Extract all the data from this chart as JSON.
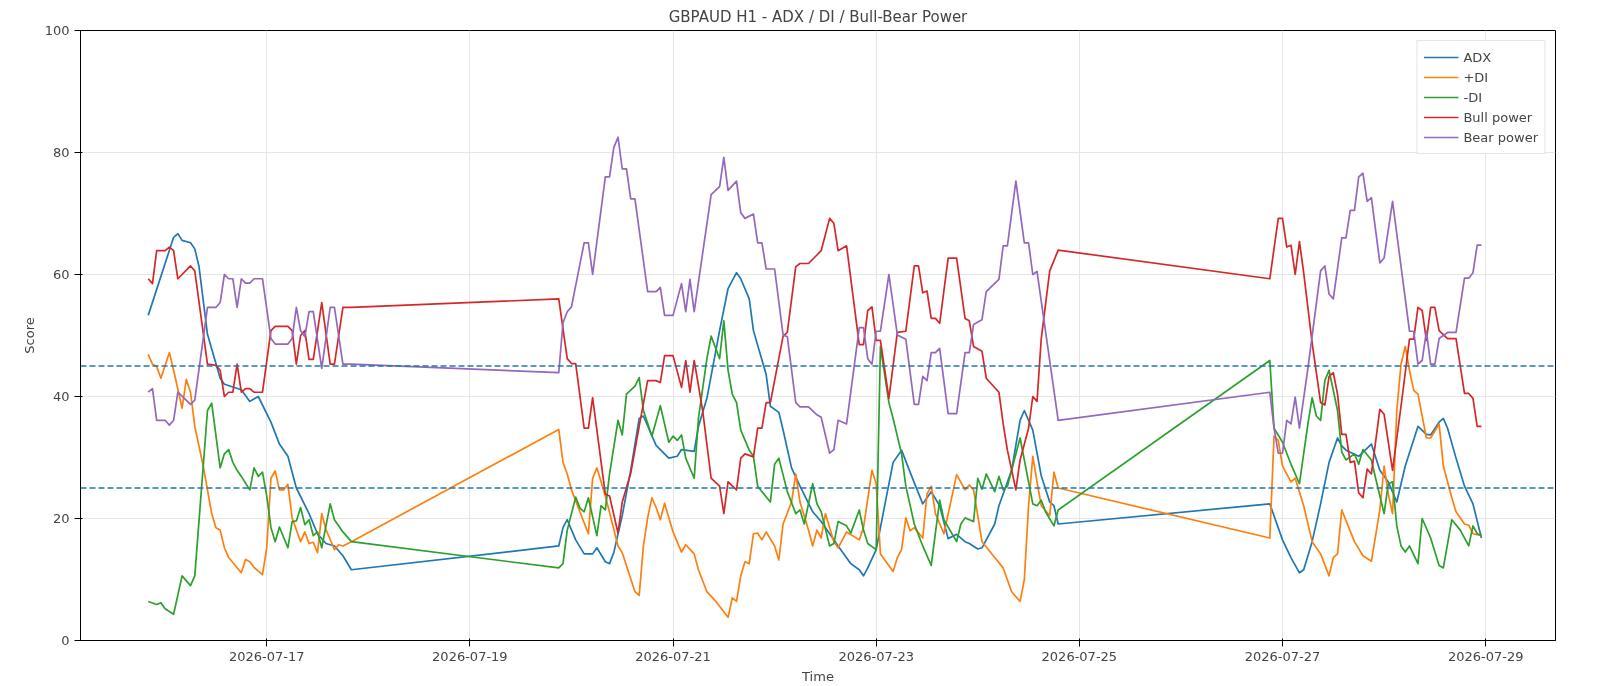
{
  "chart_data": {
    "type": "line",
    "title": "GBPAUD H1 - ADX / DI / Bull-Bear Power",
    "xlabel": "Time",
    "ylabel": "Score",
    "xlim": [
      "2026-07-15T04:00",
      "2026-07-29T16:30"
    ],
    "xticks": [
      "2026-07-17",
      "2026-07-19",
      "2026-07-21",
      "2026-07-23",
      "2026-07-25",
      "2026-07-27",
      "2026-07-29"
    ],
    "ylim": [
      0,
      100
    ],
    "yticks": [
      0,
      20,
      40,
      60,
      80,
      100
    ],
    "grid": true,
    "legend": "top right",
    "line_style": "solid",
    "ref_lines": [
      {
        "axis": "y",
        "value": 45,
        "color": "#1f77b4",
        "line_style": "dashed"
      },
      {
        "axis": "y",
        "value": 25,
        "color": "#1f77b4",
        "line_style": "dashed"
      }
    ],
    "series": [
      {
        "name": "ADX",
        "color": "#1f77b4",
        "x": [
          "2026-07-15T20:00",
          "2026-07-16T02:00",
          "2026-07-16T03:00",
          "2026-07-16T04:00",
          "2026-07-16T06:00",
          "2026-07-16T07:00",
          "2026-07-16T08:00",
          "2026-07-16T10:00",
          "2026-07-16T13:00",
          "2026-07-16T14:00",
          "2026-07-16T18:00",
          "2026-07-16T20:00",
          "2026-07-16T22:00",
          "2026-07-17T01:00",
          "2026-07-17T03:00",
          "2026-07-17T05:00",
          "2026-07-17T07:00",
          "2026-07-17T10:00",
          "2026-07-17T12:00",
          "2026-07-17T14:00",
          "2026-07-17T16:00",
          "2026-07-17T18:00",
          "2026-07-17T20:00",
          "2026-07-19T21:00",
          "2026-07-19T22:00",
          "2026-07-19T23:00",
          "2026-07-20T01:00",
          "2026-07-20T03:00",
          "2026-07-20T05:00",
          "2026-07-20T06:00",
          "2026-07-20T08:00",
          "2026-07-20T09:00",
          "2026-07-20T10:00",
          "2026-07-20T12:00",
          "2026-07-20T14:00",
          "2026-07-20T16:00",
          "2026-07-20T17:00",
          "2026-07-20T20:00",
          "2026-07-20T23:00",
          "2026-07-21T01:00",
          "2026-07-21T02:00",
          "2026-07-21T05:00",
          "2026-07-21T06:00",
          "2026-07-21T08:00",
          "2026-07-21T11:00",
          "2026-07-21T13:00",
          "2026-07-21T15:00",
          "2026-07-21T16:00",
          "2026-07-21T18:00",
          "2026-07-21T19:00",
          "2026-07-21T22:00",
          "2026-07-21T23:00",
          "2026-07-22T01:00",
          "2026-07-22T02:00",
          "2026-07-22T04:00",
          "2026-07-22T06:00",
          "2026-07-22T09:00",
          "2026-07-22T11:00",
          "2026-07-22T13:00",
          "2026-07-22T15:00",
          "2026-07-22T18:00",
          "2026-07-22T20:00",
          "2026-07-22T21:00",
          "2026-07-22T22:00",
          "2026-07-23T00:00",
          "2026-07-23T02:00",
          "2026-07-23T04:00",
          "2026-07-23T06:00",
          "2026-07-23T08:00",
          "2026-07-23T11:00",
          "2026-07-23T13:00",
          "2026-07-23T15:00",
          "2026-07-23T17:00",
          "2026-07-23T19:00",
          "2026-07-23T21:00",
          "2026-07-23T22:00",
          "2026-07-24T00:00",
          "2026-07-24T01:00",
          "2026-07-24T04:00",
          "2026-07-24T05:00",
          "2026-07-24T08:00",
          "2026-07-24T10:00",
          "2026-07-24T11:00",
          "2026-07-24T13:00",
          "2026-07-24T15:00",
          "2026-07-24T17:00",
          "2026-07-24T18:00",
          "2026-07-24T19:00",
          "2026-07-26T21:00",
          "2026-07-27T00:00",
          "2026-07-27T02:00",
          "2026-07-27T04:00",
          "2026-07-27T05:00",
          "2026-07-27T07:00",
          "2026-07-27T09:00",
          "2026-07-27T11:00",
          "2026-07-27T13:00",
          "2026-07-27T14:00",
          "2026-07-27T15:00",
          "2026-07-27T18:00",
          "2026-07-27T21:00",
          "2026-07-27T23:00",
          "2026-07-28T01:00",
          "2026-07-28T03:00",
          "2026-07-28T05:00",
          "2026-07-28T08:00",
          "2026-07-28T10:00",
          "2026-07-28T11:00",
          "2026-07-28T13:00",
          "2026-07-28T14:00",
          "2026-07-28T15:00",
          "2026-07-28T17:00",
          "2026-07-28T19:00",
          "2026-07-28T21:00",
          "2026-07-28T23:00"
        ],
        "values": [
          53.3,
          66.1,
          66.7,
          65.6,
          65.2,
          64.2,
          61.3,
          50.2,
          43,
          42,
          41.1,
          39.2,
          40,
          35.8,
          32.2,
          30.2,
          25,
          20.8,
          17.5,
          15.9,
          15.5,
          13.9,
          11.6,
          15.5,
          18.5,
          19.8,
          16.5,
          14.2,
          14.2,
          15.2,
          12.9,
          12.6,
          14.4,
          20.5,
          27.9,
          36.4,
          36.8,
          32,
          29.9,
          30.2,
          31.3,
          31,
          35.1,
          39.7,
          50.8,
          57.7,
          60.3,
          59.3,
          56,
          50.8,
          43.6,
          38.4,
          37.4,
          34.5,
          28.3,
          25.3,
          21.1,
          19.5,
          17.5,
          15.5,
          12.6,
          11.6,
          10.6,
          11.9,
          14.9,
          22.1,
          29.2,
          31.2,
          27.6,
          22.4,
          24.4,
          22.1,
          16.7,
          17.4,
          16.2,
          15.9,
          15,
          15.2,
          19.1,
          22.1,
          27.9,
          36.1,
          37.7,
          34.5,
          27,
          22.7,
          22.1,
          19.1,
          22.4,
          16.5,
          13.6,
          11.1,
          11.6,
          16.2,
          22.4,
          29.2,
          33.2,
          31.9,
          31.2,
          30.2,
          32.2,
          27.9,
          26,
          22.7,
          28.6,
          35.1,
          33.8,
          33.7,
          35.8,
          36.4,
          34.8,
          29.9,
          25.3,
          22.4,
          16.8
        ]
      },
      {
        "name": "+DI",
        "color": "#ff7f0e",
        "x": [
          "2026-07-15T20:00",
          "2026-07-15T21:00",
          "2026-07-15T22:00",
          "2026-07-15T23:00",
          "2026-07-16T01:00",
          "2026-07-16T02:00",
          "2026-07-16T04:00",
          "2026-07-16T05:00",
          "2026-07-16T06:00",
          "2026-07-16T07:00",
          "2026-07-16T09:00",
          "2026-07-16T11:00",
          "2026-07-16T12:00",
          "2026-07-16T13:00",
          "2026-07-16T14:00",
          "2026-07-16T15:00",
          "2026-07-16T18:00",
          "2026-07-16T19:00",
          "2026-07-16T20:00",
          "2026-07-16T21:00",
          "2026-07-16T23:00",
          "2026-07-17T00:00",
          "2026-07-17T01:00",
          "2026-07-17T02:00",
          "2026-07-17T03:00",
          "2026-07-17T04:00",
          "2026-07-17T05:00",
          "2026-07-17T06:00",
          "2026-07-17T08:00",
          "2026-07-17T09:00",
          "2026-07-17T10:00",
          "2026-07-17T11:00",
          "2026-07-17T12:00",
          "2026-07-17T13:00",
          "2026-07-17T14:00",
          "2026-07-17T16:00",
          "2026-07-17T17:00",
          "2026-07-17T18:00",
          "2026-07-17T20:00",
          "2026-07-19T21:00",
          "2026-07-19T22:00",
          "2026-07-19T23:00",
          "2026-07-20T00:00",
          "2026-07-20T04:00",
          "2026-07-20T05:00",
          "2026-07-20T06:00",
          "2026-07-20T08:00",
          "2026-07-20T11:00",
          "2026-07-20T12:00",
          "2026-07-20T15:00",
          "2026-07-20T16:00",
          "2026-07-20T17:00",
          "2026-07-20T18:00",
          "2026-07-20T19:00",
          "2026-07-20T20:00",
          "2026-07-20T21:00",
          "2026-07-20T22:00",
          "2026-07-21T00:00",
          "2026-07-21T02:00",
          "2026-07-21T03:00",
          "2026-07-21T05:00",
          "2026-07-21T06:00",
          "2026-07-21T08:00",
          "2026-07-21T10:00",
          "2026-07-21T13:00",
          "2026-07-21T14:00",
          "2026-07-21T15:00",
          "2026-07-21T16:00",
          "2026-07-21T17:00",
          "2026-07-21T18:00",
          "2026-07-21T19:00",
          "2026-07-21T20:00",
          "2026-07-21T21:00",
          "2026-07-21T22:00",
          "2026-07-22T00:00",
          "2026-07-22T01:00",
          "2026-07-22T02:00",
          "2026-07-22T04:00",
          "2026-07-22T05:00",
          "2026-07-22T06:00",
          "2026-07-22T08:00",
          "2026-07-22T09:00",
          "2026-07-22T10:00",
          "2026-07-22T11:00",
          "2026-07-22T12:00",
          "2026-07-22T14:00",
          "2026-07-22T15:00",
          "2026-07-22T17:00",
          "2026-07-22T20:00",
          "2026-07-22T21:00",
          "2026-07-22T23:00",
          "2026-07-23T00:00",
          "2026-07-23T01:00",
          "2026-07-23T04:00",
          "2026-07-23T05:00",
          "2026-07-23T06:00",
          "2026-07-23T07:00",
          "2026-07-23T08:00",
          "2026-07-23T09:00",
          "2026-07-23T11:00",
          "2026-07-23T12:00",
          "2026-07-23T13:00",
          "2026-07-23T14:00",
          "2026-07-23T16:00",
          "2026-07-23T19:00",
          "2026-07-23T21:00",
          "2026-07-23T22:00",
          "2026-07-23T23:00",
          "2026-07-24T01:00",
          "2026-07-24T04:00",
          "2026-07-24T06:00",
          "2026-07-24T08:00",
          "2026-07-24T10:00",
          "2026-07-24T11:00",
          "2026-07-24T12:00",
          "2026-07-24T13:00",
          "2026-07-24T14:00",
          "2026-07-24T15:00",
          "2026-07-24T17:00",
          "2026-07-24T18:00",
          "2026-07-24T19:00",
          "2026-07-26T21:00",
          "2026-07-26T22:00",
          "2026-07-26T23:00",
          "2026-07-27T00:00",
          "2026-07-27T02:00",
          "2026-07-27T03:00",
          "2026-07-27T05:00",
          "2026-07-27T07:00",
          "2026-07-27T09:00",
          "2026-07-27T11:00",
          "2026-07-27T12:00",
          "2026-07-27T13:00",
          "2026-07-27T14:00",
          "2026-07-27T17:00",
          "2026-07-27T19:00",
          "2026-07-27T21:00",
          "2026-07-27T23:00",
          "2026-07-28T00:00",
          "2026-07-28T01:00",
          "2026-07-28T02:00",
          "2026-07-28T03:00",
          "2026-07-28T04:00",
          "2026-07-28T05:00",
          "2026-07-28T06:00",
          "2026-07-28T07:00",
          "2026-07-28T08:00",
          "2026-07-28T10:00",
          "2026-07-28T11:00",
          "2026-07-28T13:00",
          "2026-07-28T14:00",
          "2026-07-28T16:00",
          "2026-07-28T17:00",
          "2026-07-28T19:00",
          "2026-07-28T20:00",
          "2026-07-28T21:00",
          "2026-07-28T23:00"
        ],
        "values": [
          46.9,
          45.3,
          44.9,
          43,
          47.2,
          44.3,
          38.1,
          42.8,
          40.7,
          35.1,
          28.6,
          20.8,
          18.5,
          18.1,
          15.2,
          13.6,
          11.1,
          13.3,
          12.9,
          12,
          10.8,
          15.2,
          26.6,
          27.8,
          24.7,
          24.7,
          25.6,
          20.1,
          16.2,
          17.8,
          15.9,
          16.1,
          14.4,
          20.8,
          18.2,
          14.9,
          15.7,
          15.5,
          16.2,
          34.6,
          29.2,
          27.3,
          24.7,
          17.5,
          26.6,
          28.3,
          23.7,
          15.5,
          14.4,
          8,
          7.4,
          15.5,
          20.1,
          23.4,
          21.8,
          19.8,
          22.5,
          17.8,
          14.5,
          15.7,
          14.2,
          11.6,
          8,
          6.5,
          3.8,
          7,
          6.4,
          10.6,
          12.9,
          12.6,
          17.5,
          17.6,
          16.5,
          17.8,
          15.5,
          13.2,
          19.1,
          22.7,
          27.3,
          22.7,
          18.1,
          15.5,
          18.1,
          16.8,
          20.8,
          16.2,
          15.2,
          17.8,
          16.5,
          18.5,
          27.9,
          25.7,
          14.2,
          11.3,
          13.6,
          14.9,
          20.1,
          18,
          18.5,
          16.8,
          24,
          25.3,
          20.8,
          17.5,
          27.2,
          24.7,
          25.5,
          24.7,
          16.2,
          13.6,
          11.9,
          8,
          6.4,
          10,
          22.1,
          30.2,
          26,
          22.1,
          20.5,
          27.6,
          25,
          16.8,
          33.5,
          32.8,
          28.6,
          26,
          26.6,
          22.1,
          16.2,
          14.2,
          10.6,
          13.6,
          14.2,
          21.4,
          16.2,
          13.9,
          13,
          21.4,
          28.6,
          24,
          20.8,
          37.7,
          45.3,
          48.2,
          44.3,
          41,
          40.4,
          33.2,
          33.2,
          35.5,
          28.6,
          23.4,
          21.1,
          19.1,
          18.9,
          17.5,
          17.2
        ]
      },
      {
        "name": "-DI",
        "color": "#2ca02c",
        "x": [
          "2026-07-15T20:00",
          "2026-07-15T22:00",
          "2026-07-15T23:00",
          "2026-07-16T00:00",
          "2026-07-16T02:00",
          "2026-07-16T04:00",
          "2026-07-16T06:00",
          "2026-07-16T07:00",
          "2026-07-16T09:00",
          "2026-07-16T10:00",
          "2026-07-16T11:00",
          "2026-07-16T13:00",
          "2026-07-16T14:00",
          "2026-07-16T15:00",
          "2026-07-16T16:00",
          "2026-07-16T17:00",
          "2026-07-16T18:00",
          "2026-07-16T20:00",
          "2026-07-16T21:00",
          "2026-07-16T22:00",
          "2026-07-16T23:00",
          "2026-07-17T00:00",
          "2026-07-17T01:00",
          "2026-07-17T02:00",
          "2026-07-17T03:00",
          "2026-07-17T05:00",
          "2026-07-17T06:00",
          "2026-07-17T07:00",
          "2026-07-17T08:00",
          "2026-07-17T09:00",
          "2026-07-17T10:00",
          "2026-07-17T11:00",
          "2026-07-17T12:00",
          "2026-07-17T13:00",
          "2026-07-17T15:00",
          "2026-07-17T16:00",
          "2026-07-17T18:00",
          "2026-07-17T20:00",
          "2026-07-19T21:00",
          "2026-07-19T22:00",
          "2026-07-19T23:00",
          "2026-07-20T01:00",
          "2026-07-20T02:00",
          "2026-07-20T03:00",
          "2026-07-20T04:00",
          "2026-07-20T06:00",
          "2026-07-20T07:00",
          "2026-07-20T08:00",
          "2026-07-20T09:00",
          "2026-07-20T11:00",
          "2026-07-20T12:00",
          "2026-07-20T13:00",
          "2026-07-20T15:00",
          "2026-07-20T16:00",
          "2026-07-20T17:00",
          "2026-07-20T19:00",
          "2026-07-20T21:00",
          "2026-07-20T23:00",
          "2026-07-21T00:00",
          "2026-07-21T01:00",
          "2026-07-21T02:00",
          "2026-07-21T03:00",
          "2026-07-21T05:00",
          "2026-07-21T06:00",
          "2026-07-21T08:00",
          "2026-07-21T09:00",
          "2026-07-21T11:00",
          "2026-07-21T12:00",
          "2026-07-21T13:00",
          "2026-07-21T14:00",
          "2026-07-21T15:00",
          "2026-07-21T16:00",
          "2026-07-21T18:00",
          "2026-07-21T19:00",
          "2026-07-21T20:00",
          "2026-07-21T21:00",
          "2026-07-21T23:00",
          "2026-07-22T00:00",
          "2026-07-22T01:00",
          "2026-07-22T03:00",
          "2026-07-22T05:00",
          "2026-07-22T06:00",
          "2026-07-22T07:00",
          "2026-07-22T09:00",
          "2026-07-22T10:00",
          "2026-07-22T11:00",
          "2026-07-22T13:00",
          "2026-07-22T14:00",
          "2026-07-22T15:00",
          "2026-07-22T17:00",
          "2026-07-22T18:00",
          "2026-07-22T20:00",
          "2026-07-22T21:00",
          "2026-07-22T22:00",
          "2026-07-23T00:00",
          "2026-07-23T01:00",
          "2026-07-23T03:00",
          "2026-07-23T04:00",
          "2026-07-23T06:00",
          "2026-07-23T07:00",
          "2026-07-23T09:00",
          "2026-07-23T11:00",
          "2026-07-23T13:00",
          "2026-07-23T15:00",
          "2026-07-23T16:00",
          "2026-07-23T19:00",
          "2026-07-23T20:00",
          "2026-07-23T21:00",
          "2026-07-23T23:00",
          "2026-07-24T00:00",
          "2026-07-24T01:00",
          "2026-07-24T02:00",
          "2026-07-24T04:00",
          "2026-07-24T05:00",
          "2026-07-24T06:00",
          "2026-07-24T07:00",
          "2026-07-24T10:00",
          "2026-07-24T13:00",
          "2026-07-24T14:00",
          "2026-07-24T15:00",
          "2026-07-24T16:00",
          "2026-07-24T18:00",
          "2026-07-24T19:00",
          "2026-07-26T21:00",
          "2026-07-26T22:00",
          "2026-07-27T00:00",
          "2026-07-27T02:00",
          "2026-07-27T04:00",
          "2026-07-27T06:00",
          "2026-07-27T07:00",
          "2026-07-27T08:00",
          "2026-07-27T09:00",
          "2026-07-27T10:00",
          "2026-07-27T11:00",
          "2026-07-27T13:00",
          "2026-07-27T14:00",
          "2026-07-27T15:00",
          "2026-07-27T17:00",
          "2026-07-27T18:00",
          "2026-07-27T19:00",
          "2026-07-27T21:00",
          "2026-07-27T22:00",
          "2026-07-28T00:00",
          "2026-07-28T01:00",
          "2026-07-28T02:00",
          "2026-07-28T03:00",
          "2026-07-28T04:00",
          "2026-07-28T05:00",
          "2026-07-28T06:00",
          "2026-07-28T08:00",
          "2026-07-28T09:00",
          "2026-07-28T11:00",
          "2026-07-28T13:00",
          "2026-07-28T14:00",
          "2026-07-28T16:00",
          "2026-07-28T18:00",
          "2026-07-28T20:00",
          "2026-07-28T21:00",
          "2026-07-28T22:00",
          "2026-07-28T23:00"
        ],
        "values": [
          6.4,
          5.9,
          6.2,
          5.2,
          4.3,
          10.6,
          9,
          10.6,
          28.6,
          37.7,
          38.9,
          28.3,
          30.6,
          31.3,
          29.2,
          27.9,
          26.9,
          24.7,
          28.3,
          26.9,
          27.6,
          23.7,
          18.5,
          16.2,
          18.6,
          15.2,
          19.5,
          19.6,
          21.8,
          19,
          19.8,
          17.2,
          17.8,
          15.2,
          22.4,
          19.8,
          17.8,
          16.2,
          11.9,
          12.6,
          18.1,
          23.5,
          21.7,
          21.1,
          23.4,
          17.2,
          22.1,
          21.4,
          27.3,
          36.1,
          33.7,
          40.4,
          41.7,
          43.1,
          37.7,
          33.5,
          38.5,
          32.5,
          33.5,
          32.8,
          33.7,
          29.9,
          26.6,
          36.4,
          46.2,
          49.9,
          46.2,
          52.4,
          44.3,
          40.4,
          39,
          34.5,
          31.2,
          30.2,
          25.3,
          24.4,
          22.7,
          28.9,
          29.9,
          24.4,
          20.8,
          21.4,
          19.1,
          25.7,
          22.4,
          21.1,
          15.5,
          15.9,
          19.5,
          18.8,
          17.6,
          21.4,
          18.1,
          15.9,
          14.9,
          48.2,
          39,
          36.4,
          30.6,
          25.3,
          19.1,
          15.5,
          12.3,
          23,
          19.8,
          16.2,
          19.1,
          20.1,
          19.5,
          26.6,
          24.8,
          27.3,
          24.4,
          26.9,
          24.7,
          25.3,
          33.2,
          22.4,
          22.1,
          23,
          21.1,
          18.8,
          21.4,
          45.9,
          34.8,
          32.5,
          28.9,
          25.7,
          35.5,
          39.8,
          36.8,
          36.1,
          42.6,
          44.3,
          37.7,
          30.9,
          29.6,
          30.6,
          28.9,
          31.3,
          29.6,
          26.6,
          20.8,
          25.7,
          26,
          18.8,
          15.5,
          14.5,
          15.5,
          12.6,
          20,
          16.8,
          12.3,
          11.9,
          19.8,
          18.1,
          15.5,
          18.8,
          17.5,
          17.2
        ]
      },
      {
        "name": "Bull power",
        "color": "#d62728",
        "x": [
          "2026-07-15T20:00",
          "2026-07-15T21:00",
          "2026-07-15T22:00",
          "2026-07-16T00:00",
          "2026-07-16T01:00",
          "2026-07-16T02:00",
          "2026-07-16T03:00",
          "2026-07-16T06:00",
          "2026-07-16T07:00",
          "2026-07-16T10:00",
          "2026-07-16T12:00",
          "2026-07-16T13:00",
          "2026-07-16T14:00",
          "2026-07-16T15:00",
          "2026-07-16T16:00",
          "2026-07-16T17:00",
          "2026-07-16T18:00",
          "2026-07-16T19:00",
          "2026-07-16T20:00",
          "2026-07-16T21:00",
          "2026-07-16T23:00",
          "2026-07-17T01:00",
          "2026-07-17T02:00",
          "2026-07-17T05:00",
          "2026-07-17T06:00",
          "2026-07-17T07:00",
          "2026-07-17T08:00",
          "2026-07-17T09:00",
          "2026-07-17T10:00",
          "2026-07-17T11:00",
          "2026-07-17T13:00",
          "2026-07-17T15:00",
          "2026-07-17T16:00",
          "2026-07-17T18:00",
          "2026-07-17T20:00",
          "2026-07-19T21:00",
          "2026-07-19T23:00",
          "2026-07-20T00:00",
          "2026-07-20T01:00",
          "2026-07-20T03:00",
          "2026-07-20T04:00",
          "2026-07-20T05:00",
          "2026-07-20T08:00",
          "2026-07-20T09:00",
          "2026-07-20T11:00",
          "2026-07-20T12:00",
          "2026-07-20T14:00",
          "2026-07-20T16:00",
          "2026-07-20T18:00",
          "2026-07-20T20:00",
          "2026-07-20T21:00",
          "2026-07-20T22:00",
          "2026-07-21T00:00",
          "2026-07-21T02:00",
          "2026-07-21T03:00",
          "2026-07-21T04:00",
          "2026-07-21T05:00",
          "2026-07-21T07:00",
          "2026-07-21T09:00",
          "2026-07-21T11:00",
          "2026-07-21T12:00",
          "2026-07-21T13:00",
          "2026-07-21T15:00",
          "2026-07-21T16:00",
          "2026-07-21T17:00",
          "2026-07-21T19:00",
          "2026-07-21T20:00",
          "2026-07-21T21:00",
          "2026-07-21T22:00",
          "2026-07-21T23:00",
          "2026-07-22T02:00",
          "2026-07-22T03:00",
          "2026-07-22T05:00",
          "2026-07-22T06:00",
          "2026-07-22T08:00",
          "2026-07-22T10:00",
          "2026-07-22T11:00",
          "2026-07-22T13:00",
          "2026-07-22T14:00",
          "2026-07-22T15:00",
          "2026-07-22T17:00",
          "2026-07-22T20:00",
          "2026-07-22T21:00",
          "2026-07-22T22:00",
          "2026-07-22T23:00",
          "2026-07-23T00:00",
          "2026-07-23T01:00",
          "2026-07-23T03:00",
          "2026-07-23T05:00",
          "2026-07-23T07:00",
          "2026-07-23T09:00",
          "2026-07-23T10:00",
          "2026-07-23T11:00",
          "2026-07-23T12:00",
          "2026-07-23T13:00",
          "2026-07-23T14:00",
          "2026-07-23T15:00",
          "2026-07-23T17:00",
          "2026-07-23T19:00",
          "2026-07-23T21:00",
          "2026-07-23T22:00",
          "2026-07-23T23:00",
          "2026-07-24T01:00",
          "2026-07-24T02:00",
          "2026-07-24T05:00",
          "2026-07-24T06:00",
          "2026-07-24T07:00",
          "2026-07-24T09:00",
          "2026-07-24T10:00",
          "2026-07-24T12:00",
          "2026-07-24T13:00",
          "2026-07-24T14:00",
          "2026-07-24T15:00",
          "2026-07-24T17:00",
          "2026-07-24T19:00",
          "2026-07-26T21:00",
          "2026-07-26T23:00",
          "2026-07-27T00:00",
          "2026-07-27T01:00",
          "2026-07-27T02:00",
          "2026-07-27T03:00",
          "2026-07-27T04:00",
          "2026-07-27T05:00",
          "2026-07-27T07:00",
          "2026-07-27T09:00",
          "2026-07-27T10:00",
          "2026-07-27T11:00",
          "2026-07-27T12:00",
          "2026-07-27T13:00",
          "2026-07-27T14:00",
          "2026-07-27T15:00",
          "2026-07-27T16:00",
          "2026-07-27T17:00",
          "2026-07-27T18:00",
          "2026-07-27T19:00",
          "2026-07-27T20:00",
          "2026-07-27T21:00",
          "2026-07-27T23:00",
          "2026-07-28T00:00",
          "2026-07-28T02:00",
          "2026-07-28T04:00",
          "2026-07-28T06:00",
          "2026-07-28T07:00",
          "2026-07-28T08:00",
          "2026-07-28T09:00",
          "2026-07-28T10:00",
          "2026-07-28T11:00",
          "2026-07-28T12:00",
          "2026-07-28T13:00",
          "2026-07-28T15:00",
          "2026-07-28T17:00",
          "2026-07-28T19:00",
          "2026-07-28T20:00",
          "2026-07-28T21:00",
          "2026-07-28T22:00",
          "2026-07-28T23:00"
        ],
        "values": [
          59.3,
          58.5,
          63.9,
          63.9,
          64.5,
          63.9,
          59.3,
          61.4,
          60.6,
          45.3,
          45.1,
          44.3,
          40,
          40.7,
          40.7,
          45.3,
          40.7,
          41.3,
          41.3,
          40.7,
          40.7,
          50.8,
          51.5,
          51.5,
          50.8,
          45.3,
          50,
          50.8,
          46.1,
          46.1,
          55.4,
          45.3,
          45.3,
          54.6,
          54.6,
          56,
          46.2,
          45.4,
          45.4,
          34.8,
          34.8,
          39.8,
          24,
          23.7,
          17.6,
          22.7,
          27.4,
          35.1,
          42.6,
          42.6,
          42.3,
          46.7,
          46.7,
          41.5,
          45.9,
          40.7,
          45.9,
          37.7,
          26.6,
          25.3,
          20.8,
          26,
          24.7,
          29.9,
          30.6,
          30.1,
          34.8,
          34.8,
          39,
          39,
          49.9,
          50.5,
          61.3,
          61.8,
          61.8,
          63.2,
          63.9,
          69.2,
          68.4,
          63.9,
          64.7,
          48.5,
          48.5,
          54.1,
          54.7,
          49.2,
          49.2,
          39.7,
          50.5,
          50.7,
          61.4,
          61.4,
          57,
          57.3,
          52.8,
          52.8,
          52,
          62.7,
          62.7,
          52.8,
          52.4,
          48.2,
          47.4,
          43,
          40.7,
          35.5,
          31.2,
          24.7,
          29.6,
          34.8,
          40,
          39.2,
          49.5,
          60.6,
          64,
          59.3,
          69.2,
          69.2,
          64.5,
          64.8,
          60,
          65.4,
          60.3,
          48.8,
          39,
          38.6,
          43.3,
          43.9,
          40.4,
          33.8,
          33.8,
          29.2,
          29.4,
          24.2,
          23.4,
          28.1,
          27.3,
          37.9,
          37.1,
          27.9,
          38.4,
          49.4,
          49.4,
          54.6,
          54.1,
          49.2,
          54.6,
          54.6,
          50.8,
          49.5,
          49.5,
          40.5,
          40.5,
          39.7,
          35.1,
          35.1
        ]
      },
      {
        "name": "Bear power",
        "color": "#9467bd",
        "x": [
          "2026-07-15T20:00",
          "2026-07-15T21:00",
          "2026-07-15T22:00",
          "2026-07-16T00:00",
          "2026-07-16T01:00",
          "2026-07-16T02:00",
          "2026-07-16T03:00",
          "2026-07-16T06:00",
          "2026-07-16T07:00",
          "2026-07-16T10:00",
          "2026-07-16T12:00",
          "2026-07-16T13:00",
          "2026-07-16T14:00",
          "2026-07-16T15:00",
          "2026-07-16T16:00",
          "2026-07-16T17:00",
          "2026-07-16T18:00",
          "2026-07-16T19:00",
          "2026-07-16T20:00",
          "2026-07-16T21:00",
          "2026-07-16T23:00",
          "2026-07-17T01:00",
          "2026-07-17T02:00",
          "2026-07-17T05:00",
          "2026-07-17T06:00",
          "2026-07-17T07:00",
          "2026-07-17T08:00",
          "2026-07-17T09:00",
          "2026-07-17T10:00",
          "2026-07-17T11:00",
          "2026-07-17T13:00",
          "2026-07-17T15:00",
          "2026-07-17T16:00",
          "2026-07-17T18:00",
          "2026-07-17T20:00",
          "2026-07-19T21:00",
          "2026-07-19T22:00",
          "2026-07-19T23:00",
          "2026-07-20T00:00",
          "2026-07-20T03:00",
          "2026-07-20T04:00",
          "2026-07-20T05:00",
          "2026-07-20T08:00",
          "2026-07-20T09:00",
          "2026-07-20T10:00",
          "2026-07-20T11:00",
          "2026-07-20T12:00",
          "2026-07-20T13:00",
          "2026-07-20T14:00",
          "2026-07-20T15:00",
          "2026-07-20T18:00",
          "2026-07-20T20:00",
          "2026-07-20T21:00",
          "2026-07-20T22:00",
          "2026-07-21T00:00",
          "2026-07-21T02:00",
          "2026-07-21T03:00",
          "2026-07-21T04:00",
          "2026-07-21T05:00",
          "2026-07-21T09:00",
          "2026-07-21T11:00",
          "2026-07-21T12:00",
          "2026-07-21T13:00",
          "2026-07-21T15:00",
          "2026-07-21T16:00",
          "2026-07-21T17:00",
          "2026-07-21T19:00",
          "2026-07-21T20:00",
          "2026-07-21T21:00",
          "2026-07-21T22:00",
          "2026-07-22T00:00",
          "2026-07-22T02:00",
          "2026-07-22T03:00",
          "2026-07-22T05:00",
          "2026-07-22T06:00",
          "2026-07-22T08:00",
          "2026-07-22T10:00",
          "2026-07-22T11:00",
          "2026-07-22T13:00",
          "2026-07-22T14:00",
          "2026-07-22T15:00",
          "2026-07-22T17:00",
          "2026-07-22T20:00",
          "2026-07-22T21:00",
          "2026-07-22T22:00",
          "2026-07-22T23:00",
          "2026-07-23T00:00",
          "2026-07-23T01:00",
          "2026-07-23T03:00",
          "2026-07-23T05:00",
          "2026-07-23T07:00",
          "2026-07-23T09:00",
          "2026-07-23T10:00",
          "2026-07-23T11:00",
          "2026-07-23T12:00",
          "2026-07-23T13:00",
          "2026-07-23T14:00",
          "2026-07-23T15:00",
          "2026-07-23T17:00",
          "2026-07-23T19:00",
          "2026-07-23T21:00",
          "2026-07-23T22:00",
          "2026-07-23T23:00",
          "2026-07-24T01:00",
          "2026-07-24T02:00",
          "2026-07-24T05:00",
          "2026-07-24T06:00",
          "2026-07-24T07:00",
          "2026-07-24T09:00",
          "2026-07-24T11:00",
          "2026-07-24T12:00",
          "2026-07-24T13:00",
          "2026-07-24T14:00",
          "2026-07-24T19:00",
          "2026-07-26T21:00",
          "2026-07-26T22:00",
          "2026-07-26T23:00",
          "2026-07-27T00:00",
          "2026-07-27T01:00",
          "2026-07-27T02:00",
          "2026-07-27T03:00",
          "2026-07-27T04:00",
          "2026-07-27T06:00",
          "2026-07-27T09:00",
          "2026-07-27T10:00",
          "2026-07-27T11:00",
          "2026-07-27T12:00",
          "2026-07-27T14:00",
          "2026-07-27T15:00",
          "2026-07-27T16:00",
          "2026-07-27T17:00",
          "2026-07-27T18:00",
          "2026-07-27T19:00",
          "2026-07-27T20:00",
          "2026-07-27T21:00",
          "2026-07-27T23:00",
          "2026-07-28T00:00",
          "2026-07-28T02:00",
          "2026-07-28T06:00",
          "2026-07-28T07:00",
          "2026-07-28T08:00",
          "2026-07-28T09:00",
          "2026-07-28T10:00",
          "2026-07-28T11:00",
          "2026-07-28T12:00",
          "2026-07-28T13:00",
          "2026-07-28T15:00",
          "2026-07-28T17:00",
          "2026-07-28T19:00",
          "2026-07-28T20:00",
          "2026-07-28T21:00",
          "2026-07-28T22:00",
          "2026-07-28T23:00"
        ],
        "values": [
          40.7,
          41.3,
          36.1,
          36.1,
          35.3,
          36.1,
          40.7,
          38.7,
          39.4,
          54.6,
          54.6,
          55.4,
          60,
          59.3,
          59.3,
          54.6,
          59.3,
          58.6,
          58.6,
          59.3,
          59.3,
          49.5,
          48.6,
          48.6,
          49.5,
          54.6,
          50.8,
          49.8,
          53.9,
          53.9,
          44.6,
          54.6,
          54.6,
          45.3,
          45.3,
          43.9,
          52.1,
          53.9,
          54.7,
          65.2,
          65.2,
          60,
          76,
          76,
          80.8,
          82.5,
          77.3,
          77.3,
          72.4,
          72.4,
          57.2,
          57.2,
          57.9,
          53.3,
          53.3,
          58.5,
          53.9,
          59.2,
          53.9,
          73.1,
          74.4,
          79.2,
          73.8,
          75.3,
          70.1,
          69.2,
          69.9,
          65.2,
          65.2,
          60.9,
          60.9,
          50.1,
          49.8,
          39,
          38.3,
          38.3,
          37,
          36.6,
          30.7,
          31.3,
          36.1,
          35.5,
          51.3,
          51.3,
          46.2,
          45.3,
          50.7,
          50.7,
          60,
          50.1,
          49.4,
          38.7,
          38.7,
          43.3,
          42.6,
          47.2,
          47.2,
          47.9,
          37.2,
          37.2,
          47.2,
          47.2,
          51.8,
          52.6,
          57.2,
          59.2,
          64.7,
          64.7,
          75.3,
          65.2,
          65.2,
          60,
          60.5,
          36.1,
          40.7,
          34.8,
          30.7,
          30.7,
          36.1,
          35.5,
          39.9,
          34.8,
          44.6,
          60.6,
          61.4,
          56.8,
          56,
          66,
          66,
          70.5,
          70.5,
          76,
          76.6,
          72,
          72.6,
          61.9,
          62.7,
          72,
          50.7,
          50.7,
          45.3,
          45.9,
          50.7,
          45.3,
          45.3,
          49.5,
          50.5,
          50.5,
          59.4,
          59.4,
          60.3,
          64.8,
          64.8
        ]
      }
    ]
  }
}
